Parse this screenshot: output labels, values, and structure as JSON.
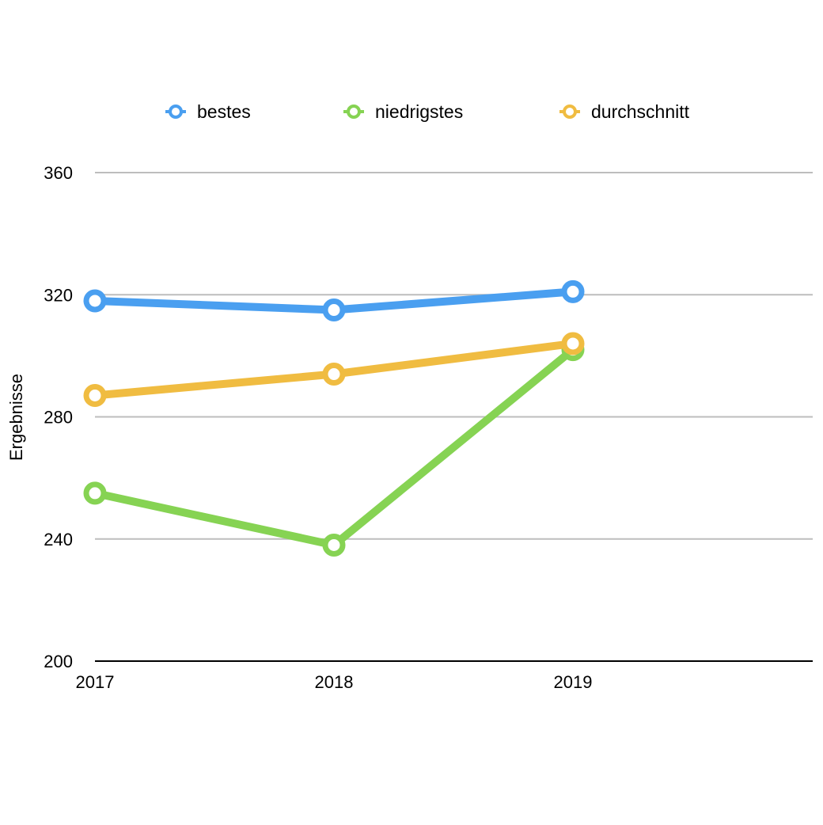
{
  "chart_data": {
    "type": "line",
    "title": "",
    "xlabel": "",
    "ylabel": "Ergebnisse",
    "categories": [
      "2017",
      "2018",
      "2019"
    ],
    "ylim": [
      200,
      360
    ],
    "yticks": [
      200,
      240,
      280,
      320,
      360
    ],
    "grid": true,
    "legend_position": "top",
    "series": [
      {
        "name": "bestes",
        "color": "#4a9ff0",
        "values": [
          318,
          315,
          321
        ]
      },
      {
        "name": "niedrigstes",
        "color": "#86d353",
        "values": [
          255,
          238,
          302
        ]
      },
      {
        "name": "durchschnitt",
        "color": "#f0bc41",
        "values": [
          287,
          294,
          304
        ]
      }
    ]
  }
}
